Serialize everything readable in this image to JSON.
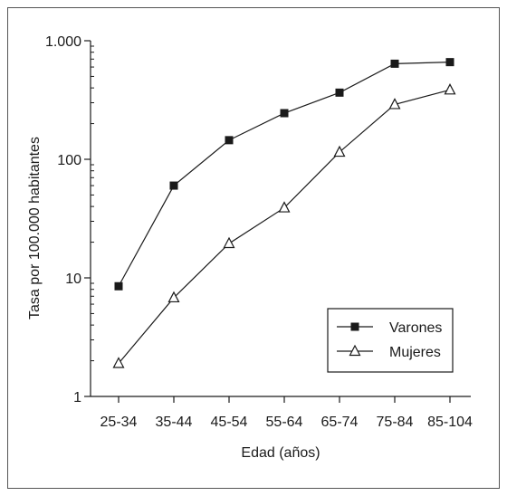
{
  "chart_data": {
    "type": "line",
    "title": "",
    "xlabel": "Edad (años)",
    "ylabel": "Tasa por 100.000 habitantes",
    "yscale": "log",
    "ylim": [
      1,
      1000
    ],
    "grid": false,
    "legend_position": "bottom-right",
    "categories": [
      "25-34",
      "35-44",
      "45-54",
      "55-64",
      "65-74",
      "75-84",
      "85-104"
    ],
    "y_ticks": [
      {
        "value": 1,
        "label": "1"
      },
      {
        "value": 10,
        "label": "10"
      },
      {
        "value": 100,
        "label": "100"
      },
      {
        "value": 1000,
        "label": "1.000"
      }
    ],
    "series": [
      {
        "name": "Varones",
        "marker": "filled-square",
        "values": [
          8.5,
          60,
          145,
          245,
          365,
          640,
          660
        ]
      },
      {
        "name": "Mujeres",
        "marker": "open-triangle",
        "values": [
          1.9,
          6.8,
          19.5,
          39,
          115,
          290,
          385
        ]
      }
    ]
  },
  "colors": {
    "line": "#1a1a1a",
    "border": "#555555",
    "background": "#ffffff"
  }
}
